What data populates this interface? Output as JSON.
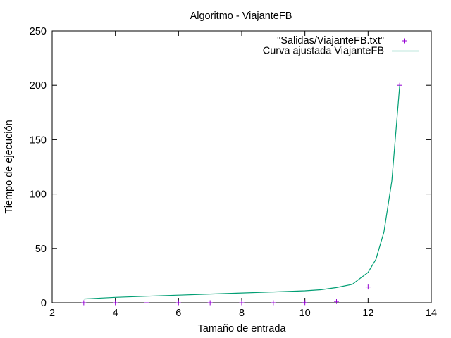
{
  "chart_data": {
    "type": "scatter",
    "title": "Algoritmo - ViajanteFB",
    "xlabel": "Tamaño de entrada",
    "ylabel": "Tiempo de ejecución",
    "xlim": [
      2,
      14
    ],
    "ylim": [
      0,
      250
    ],
    "xticks": [
      2,
      4,
      6,
      8,
      10,
      12,
      14
    ],
    "yticks": [
      0,
      50,
      100,
      150,
      200,
      250
    ],
    "grid": false,
    "legend_position": "top-right",
    "series": [
      {
        "name": "\"Salidas/ViajanteFB.txt\"",
        "kind": "points",
        "marker": "+",
        "color": "#9400d3",
        "x": [
          3,
          4,
          5,
          6,
          7,
          8,
          9,
          10,
          11,
          12,
          13
        ],
        "y": [
          0,
          0,
          0,
          0,
          0,
          0,
          0,
          0.1,
          1.2,
          14.5,
          200
        ]
      },
      {
        "name": "Curva ajustada ViajanteFB",
        "kind": "line",
        "color": "#009e73",
        "x": [
          3,
          4,
          5,
          6,
          7,
          8,
          9,
          10,
          10.5,
          11,
          11.5,
          12,
          12.25,
          12.5,
          12.75,
          13
        ],
        "y": [
          3.5,
          5,
          6,
          7,
          8,
          9,
          10,
          11,
          12,
          14,
          17,
          28,
          40,
          65,
          112,
          200
        ]
      }
    ]
  }
}
